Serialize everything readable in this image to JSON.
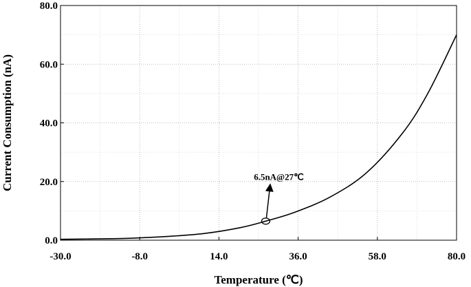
{
  "chart_data": {
    "type": "line",
    "title": "",
    "xlabel": "Temperature (℃)",
    "ylabel": "Current Consumption (nA)",
    "xlim": [
      -30,
      80
    ],
    "ylim": [
      0,
      80
    ],
    "xticks": [
      "-30.0",
      "-8.0",
      "14.0",
      "36.0",
      "58.0",
      "80.0"
    ],
    "yticks": [
      "0.0",
      "20.0",
      "40.0",
      "60.0",
      "80.0"
    ],
    "grid": true,
    "series": [
      {
        "name": "",
        "color": "#000000",
        "x": [
          -30,
          -20,
          -10,
          0,
          10,
          20,
          27,
          35,
          45,
          55,
          65,
          72,
          80
        ],
        "y": [
          0.3,
          0.45,
          0.7,
          1.3,
          2.3,
          4.3,
          6.5,
          9.5,
          14.8,
          23.0,
          36.5,
          50.0,
          70.0
        ]
      }
    ],
    "annotations": [
      {
        "text": "6.5nA@27℃",
        "x": 27,
        "y": 6.5
      }
    ]
  }
}
